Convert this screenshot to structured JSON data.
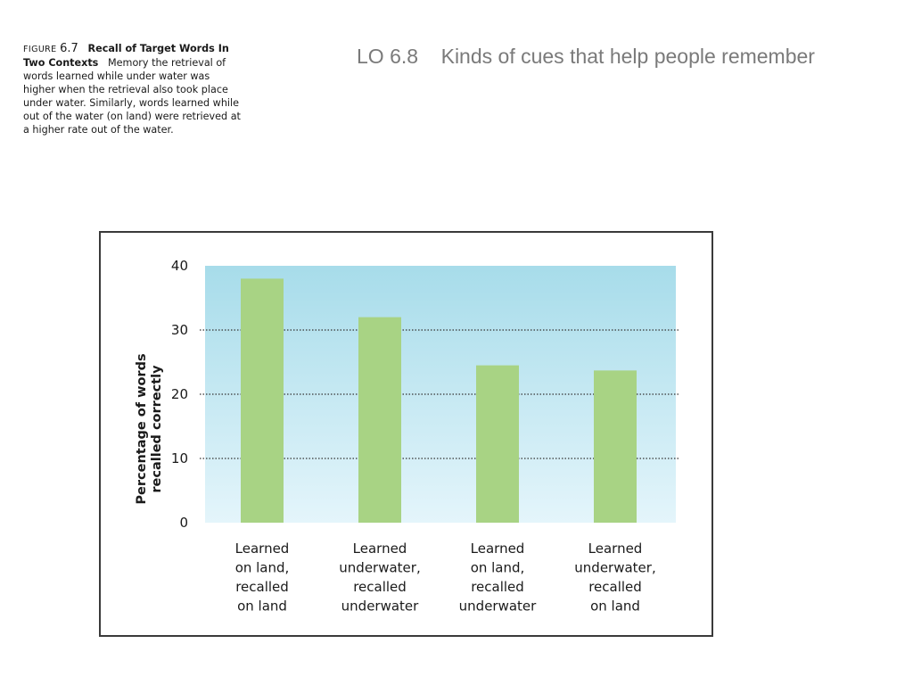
{
  "slide": {
    "title": "LO 6.8    Kinds of cues that help people remember"
  },
  "caption": {
    "label": "FIGURE",
    "number": "6.7",
    "title": "Recall of Target Words In Two Contexts",
    "text": "Memory the retrieval of words learned while under water was higher when the retrieval also took place under water. Similarly, words learned while out of the water (on land) were retrieved at a higher rate out of the water."
  },
  "colors": {
    "bar": "#a8d384",
    "plot_top": "#a7dcea",
    "plot_bottom": "#e4f5fb",
    "gridline": "#333333",
    "frame": "#3a3a3a"
  },
  "chart_data": {
    "type": "bar",
    "title": "",
    "xlabel": "",
    "ylabel_lines": [
      "Percentage of words",
      "recalled correctly"
    ],
    "ylim": [
      0,
      40
    ],
    "yticks": [
      0,
      10,
      20,
      30,
      40
    ],
    "grid": "dotted horizontal at 10, 20, 30",
    "categories": [
      [
        "Learned",
        "on land,",
        "recalled",
        "on land"
      ],
      [
        "Learned",
        "underwater,",
        "recalled",
        "underwater"
      ],
      [
        "Learned",
        "on land,",
        "recalled",
        "underwater"
      ],
      [
        "Learned",
        "underwater,",
        "recalled",
        "on land"
      ]
    ],
    "values": [
      38,
      32,
      24.5,
      23.7
    ]
  }
}
